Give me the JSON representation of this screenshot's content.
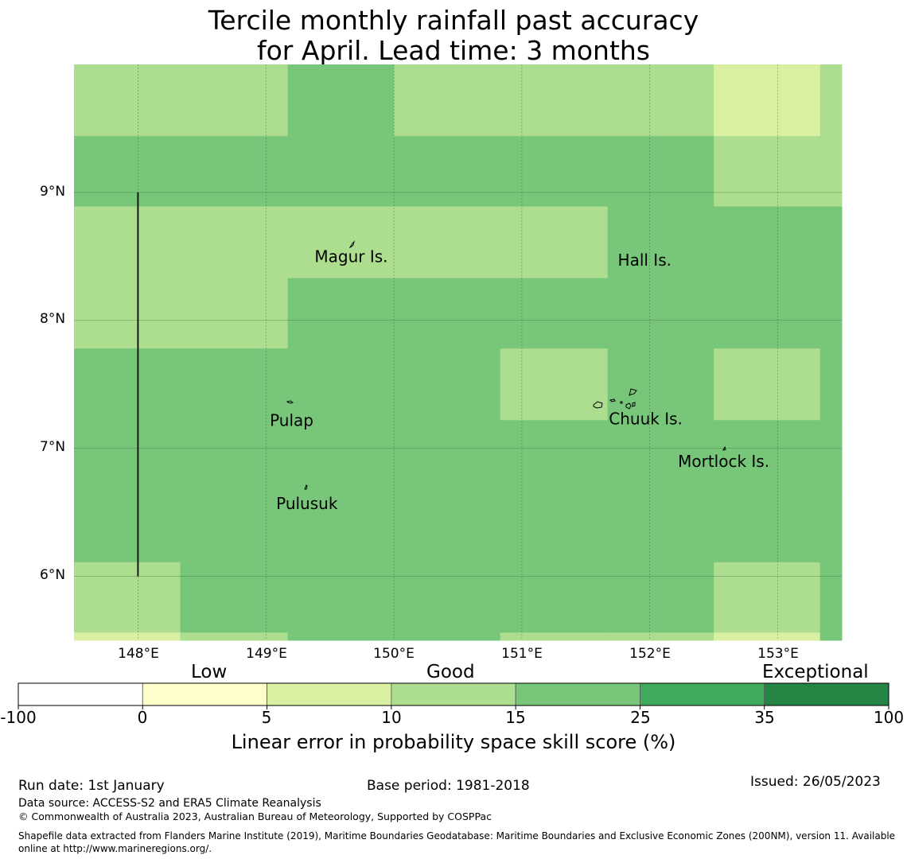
{
  "title": {
    "line1": "Tercile monthly rainfall past accuracy",
    "line2": "for April. Lead time: 3 months"
  },
  "map": {
    "lon_range": [
      147.5,
      153.5
    ],
    "lat_range": [
      5.5,
      10.0
    ],
    "lon_ticks": [
      "148°E",
      "149°E",
      "150°E",
      "151°E",
      "152°E",
      "153°E"
    ],
    "lat_ticks": [
      "9°N",
      "8°N",
      "7°N",
      "6°N"
    ],
    "cell_lon_edges": [
      147.5,
      148.33,
      149.17,
      150.0,
      150.83,
      151.67,
      152.5,
      153.33,
      153.5
    ],
    "cell_lat_edges": [
      10.0,
      9.44,
      8.89,
      8.33,
      7.78,
      7.22,
      6.67,
      6.11,
      5.56,
      5.5
    ],
    "skill_categories": [
      [
        2,
        2,
        3,
        2,
        2,
        2,
        1,
        2
      ],
      [
        3,
        3,
        3,
        3,
        3,
        3,
        2,
        2
      ],
      [
        2,
        2,
        2,
        2,
        2,
        3,
        3,
        3
      ],
      [
        2,
        2,
        3,
        3,
        3,
        3,
        3,
        3
      ],
      [
        3,
        3,
        3,
        3,
        2,
        3,
        2,
        3
      ],
      [
        3,
        3,
        3,
        3,
        3,
        3,
        3,
        3
      ],
      [
        3,
        3,
        3,
        3,
        3,
        3,
        3,
        3
      ],
      [
        2,
        3,
        3,
        3,
        3,
        3,
        2,
        3
      ],
      [
        1,
        2,
        3,
        3,
        2,
        2,
        1,
        3
      ]
    ],
    "places": [
      {
        "name": "Magur Is.",
        "lon": 149.38,
        "lat": 8.5
      },
      {
        "name": "Hall Is.",
        "lon": 151.75,
        "lat": 8.47
      },
      {
        "name": "Pulap",
        "lon": 149.03,
        "lat": 7.22
      },
      {
        "name": "Chuuk Is.",
        "lon": 151.68,
        "lat": 7.23
      },
      {
        "name": "Mortlock Is.",
        "lon": 152.22,
        "lat": 6.9
      },
      {
        "name": "Pulusuk",
        "lon": 149.08,
        "lat": 6.57
      }
    ],
    "reference_line": {
      "lon": 148.0,
      "lat_from": 9.0,
      "lat_to": 6.0
    }
  },
  "legend": {
    "categories": [
      {
        "label": "Low"
      },
      {
        "label": "Good"
      },
      {
        "label": "Exceptional"
      }
    ],
    "bins": [
      {
        "from": "-100",
        "to": "0",
        "color": "#ffffff"
      },
      {
        "from": "0",
        "to": "5",
        "color": "#ffffcc"
      },
      {
        "from": "5",
        "to": "10",
        "color": "#d9f0a3"
      },
      {
        "from": "10",
        "to": "15",
        "color": "#addd8e"
      },
      {
        "from": "15",
        "to": "25",
        "color": "#78c679"
      },
      {
        "from": "25",
        "to": "35",
        "color": "#41ab5d"
      },
      {
        "from": "35",
        "to": "100",
        "color": "#238443"
      }
    ],
    "tick_labels": [
      "-100",
      "0",
      "5",
      "10",
      "15",
      "25",
      "35",
      "100"
    ],
    "title": "Linear error in probability space skill score (%)"
  },
  "footer": {
    "run_date": "Run date: 1st January",
    "base_period": "Base period: 1981-2018",
    "issued": "Issued: 26/05/2023",
    "data_source": "Data source: ACCESS-S2 and ERA5 Climate Reanalysis",
    "copyright": "© Commonwealth of Australia 2023, Australian Bureau of Meteorology, Supported by COSPPac",
    "shapefile": "Shapefile data extracted from Flanders Marine Institute (2019), Maritime Boundaries Geodatabase: Maritime Boundaries and Exclusive Economic Zones (200NM), version 11. Available online at http://www.marineregions.org/."
  }
}
